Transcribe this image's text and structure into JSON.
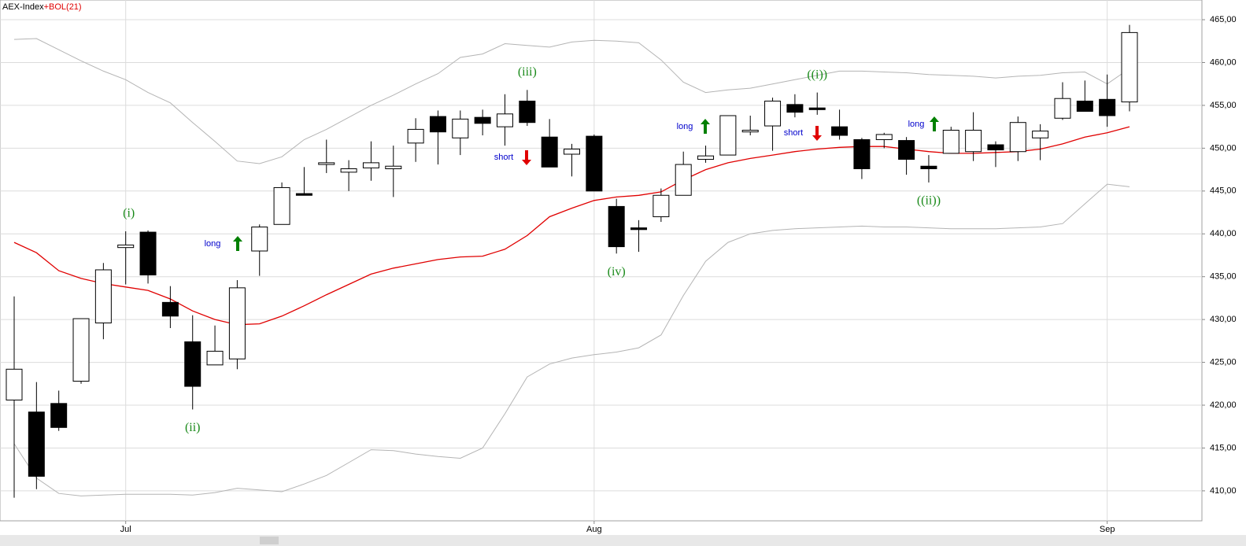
{
  "chart_data": {
    "type": "candlestick",
    "title": "AEX-Index",
    "indicator": "+BOL(21)",
    "title_color": "#000000",
    "indicator_color": "#e00000",
    "categories": [
      null,
      null,
      null,
      null,
      null,
      "Jul",
      null,
      null,
      null,
      null,
      null,
      null,
      null,
      null,
      null,
      null,
      null,
      null,
      null,
      null,
      null,
      null,
      null,
      null,
      null,
      null,
      "Aug",
      null,
      null,
      null,
      null,
      null,
      null,
      null,
      null,
      null,
      null,
      null,
      null,
      null,
      null,
      null,
      null,
      null,
      null,
      null,
      null,
      null,
      null,
      "Sep",
      null
    ],
    "open": [
      420.6,
      419.2,
      420.2,
      422.8,
      429.6,
      438.4,
      440.2,
      432.0,
      427.4,
      424.7,
      425.4,
      438.0,
      441.1,
      444.7,
      448.1,
      447.2,
      447.7,
      447.6,
      450.6,
      453.7,
      451.2,
      453.6,
      452.5,
      455.5,
      451.3,
      449.3,
      451.4,
      443.2,
      440.7,
      442.0,
      444.5,
      448.7,
      449.2,
      451.9,
      452.6,
      455.1,
      454.7,
      452.5,
      451.0,
      451.0,
      450.9,
      447.9,
      449.4,
      449.6,
      450.4,
      449.6,
      451.2,
      453.5,
      455.5,
      455.7,
      455.4
    ],
    "high": [
      432.7,
      422.7,
      421.7,
      430.1,
      436.6,
      440.3,
      440.4,
      433.9,
      430.5,
      429.3,
      434.6,
      441.1,
      446.0,
      447.8,
      451.0,
      448.6,
      450.8,
      450.3,
      453.5,
      454.4,
      454.4,
      454.5,
      456.3,
      456.8,
      453.4,
      450.5,
      451.6,
      444.1,
      441.6,
      445.3,
      449.6,
      450.3,
      453.8,
      453.8,
      455.9,
      456.3,
      456.5,
      454.5,
      451.2,
      451.8,
      451.3,
      449.2,
      452.5,
      454.2,
      450.8,
      453.7,
      452.8,
      457.7,
      457.9,
      458.6,
      464.4
    ],
    "low": [
      409.2,
      410.2,
      417.0,
      422.5,
      427.7,
      434.1,
      434.2,
      429.0,
      419.5,
      424.7,
      424.2,
      435.1,
      441.1,
      444.5,
      447.1,
      445.0,
      446.2,
      444.3,
      448.4,
      448.1,
      449.2,
      451.5,
      450.3,
      452.6,
      447.8,
      446.7,
      445.0,
      437.7,
      437.9,
      441.4,
      444.5,
      448.3,
      449.2,
      451.5,
      449.7,
      453.6,
      453.9,
      451.0,
      446.4,
      450.0,
      446.9,
      446.0,
      449.4,
      448.5,
      447.8,
      448.5,
      448.6,
      453.3,
      454.3,
      452.5,
      454.3
    ],
    "close": [
      424.2,
      411.7,
      417.4,
      430.1,
      435.8,
      438.7,
      435.2,
      430.4,
      422.2,
      426.3,
      433.7,
      440.8,
      445.4,
      444.5,
      448.3,
      447.6,
      448.3,
      447.9,
      452.2,
      451.9,
      453.4,
      452.9,
      454.0,
      453.0,
      447.8,
      449.9,
      445.0,
      438.5,
      440.5,
      444.5,
      448.1,
      449.1,
      453.8,
      452.1,
      455.5,
      454.2,
      454.5,
      451.5,
      447.6,
      451.6,
      448.7,
      447.6,
      452.1,
      452.1,
      449.8,
      453.0,
      452.0,
      455.8,
      454.3,
      453.8,
      463.5
    ],
    "up_color": "#ffffff",
    "down_color": "#000000",
    "bands": {
      "upper": [
        462.7,
        462.8,
        461.5,
        460.2,
        459.0,
        458.0,
        456.5,
        455.3,
        453.0,
        450.8,
        448.5,
        448.2,
        449.0,
        451.0,
        452.2,
        453.6,
        455.0,
        456.2,
        457.5,
        458.7,
        460.6,
        461.0,
        462.2,
        462.0,
        461.8,
        462.4,
        462.6,
        462.5,
        462.3,
        460.3,
        457.7,
        456.5,
        456.8,
        457.0,
        457.5,
        458.0,
        458.5,
        459.0,
        459.0,
        458.9,
        458.8,
        458.6,
        458.5,
        458.4,
        458.2,
        458.4,
        458.5,
        458.8,
        458.9,
        457.5,
        459.3
      ],
      "middle": [
        439.0,
        437.8,
        435.7,
        434.8,
        434.2,
        433.8,
        433.4,
        432.4,
        431.0,
        430.0,
        429.4,
        429.5,
        430.4,
        431.6,
        432.9,
        434.1,
        435.3,
        436.0,
        436.5,
        437.0,
        437.3,
        437.4,
        438.2,
        439.8,
        442.0,
        443.0,
        443.9,
        444.3,
        444.5,
        444.9,
        446.3,
        447.5,
        448.3,
        448.8,
        449.2,
        449.6,
        449.9,
        450.1,
        450.2,
        450.2,
        449.9,
        449.6,
        449.4,
        449.4,
        449.5,
        449.6,
        449.9,
        450.5,
        451.3,
        451.8,
        452.5
      ],
      "lower": [
        415.5,
        411.5,
        409.7,
        409.4,
        409.5,
        409.6,
        409.6,
        409.6,
        409.5,
        409.8,
        410.3,
        410.1,
        409.9,
        410.8,
        411.8,
        413.3,
        414.8,
        414.7,
        414.3,
        414.0,
        413.8,
        415.0,
        419.0,
        423.3,
        424.8,
        425.5,
        425.9,
        426.2,
        426.7,
        428.2,
        432.8,
        436.8,
        439.0,
        440.0,
        440.4,
        440.6,
        440.7,
        440.8,
        440.9,
        440.8,
        440.8,
        440.7,
        440.6,
        440.6,
        440.6,
        440.7,
        440.8,
        441.2,
        443.5,
        445.8,
        445.5
      ],
      "band_color": "#b4b4b4",
      "middle_color": "#e00000"
    },
    "ylim": [
      406.5,
      467.3
    ],
    "yticks": [
      {
        "value": 410,
        "label": "410,00"
      },
      {
        "value": 415,
        "label": "415,00"
      },
      {
        "value": 420,
        "label": "420,00"
      },
      {
        "value": 425,
        "label": "425,00"
      },
      {
        "value": 430,
        "label": "430,00"
      },
      {
        "value": 435,
        "label": "435,00"
      },
      {
        "value": 440,
        "label": "440,00"
      },
      {
        "value": 445,
        "label": "445,00"
      },
      {
        "value": 450,
        "label": "450,00"
      },
      {
        "value": 455,
        "label": "455,00"
      },
      {
        "value": 460,
        "label": "460,00"
      },
      {
        "value": 465,
        "label": "465,00"
      }
    ],
    "grid": true,
    "wave_labels": [
      "(i)",
      "(ii)",
      "(iii)",
      "(iv)",
      "((i))",
      "((ii))"
    ],
    "wave_color": "#1a8a1a",
    "signals": [
      {
        "text": "long",
        "direction": "up"
      },
      {
        "text": "short",
        "direction": "down"
      },
      {
        "text": "long",
        "direction": "up"
      },
      {
        "text": "short",
        "direction": "down"
      },
      {
        "text": "long",
        "direction": "up"
      }
    ],
    "signal_text_color": "#0000cc",
    "up_arrow_color": "#008000",
    "down_arrow_color": "#e00000"
  }
}
